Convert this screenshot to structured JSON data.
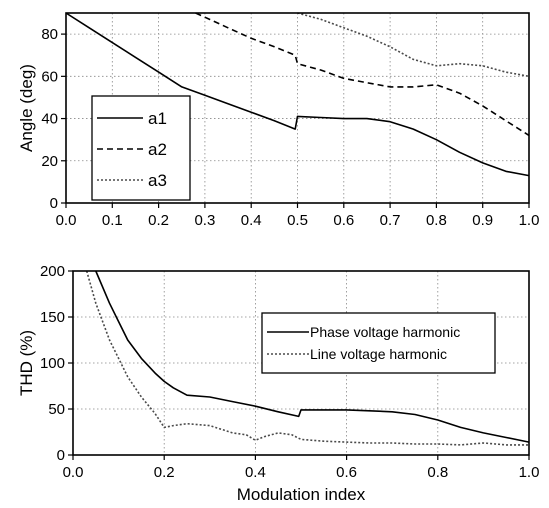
{
  "chart_data": [
    {
      "type": "line",
      "xlabel": "",
      "ylabel": "Angle (deg)",
      "xlim": [
        0.0,
        1.0
      ],
      "ylim": [
        0,
        90
      ],
      "xticks": [
        "0.0",
        "0.1",
        "0.2",
        "0.3",
        "0.4",
        "0.5",
        "0.6",
        "0.7",
        "0.8",
        "0.9",
        "1.0"
      ],
      "yticks": [
        "0",
        "20",
        "40",
        "60",
        "80"
      ],
      "grid": true,
      "legend_position": "middle-left",
      "series": [
        {
          "name": "a1",
          "style": "solid",
          "x": [
            0.0,
            0.05,
            0.1,
            0.15,
            0.2,
            0.25,
            0.3,
            0.35,
            0.4,
            0.45,
            0.495,
            0.5,
            0.55,
            0.6,
            0.65,
            0.7,
            0.75,
            0.8,
            0.85,
            0.9,
            0.95,
            1.0
          ],
          "y": [
            90,
            83,
            76,
            69,
            62,
            55,
            51,
            47,
            43,
            39,
            35,
            41,
            40.5,
            40,
            40,
            38.5,
            35,
            30,
            24,
            19,
            15,
            13
          ]
        },
        {
          "name": "a2",
          "style": "dashed",
          "x": [
            0.28,
            0.3,
            0.35,
            0.4,
            0.45,
            0.495,
            0.5,
            0.55,
            0.6,
            0.65,
            0.7,
            0.75,
            0.8,
            0.85,
            0.9,
            0.95,
            1.0
          ],
          "y": [
            90,
            88,
            83,
            78,
            74,
            70,
            66,
            63,
            59,
            57,
            55,
            55,
            56,
            52,
            46,
            39,
            32
          ]
        },
        {
          "name": "a3",
          "style": "dotted",
          "x": [
            0.5,
            0.55,
            0.6,
            0.65,
            0.7,
            0.75,
            0.8,
            0.85,
            0.9,
            0.95,
            1.0
          ],
          "y": [
            90,
            87,
            83,
            79,
            74,
            68,
            65,
            66,
            65,
            62,
            60
          ]
        }
      ]
    },
    {
      "type": "line",
      "xlabel": "Modulation index",
      "ylabel": "THD (%)",
      "xlim": [
        0.0,
        1.0
      ],
      "ylim": [
        0,
        200
      ],
      "xticks": [
        "0.0",
        "0.2",
        "0.4",
        "0.6",
        "0.8",
        "1.0"
      ],
      "yticks": [
        "0",
        "50",
        "100",
        "150",
        "200"
      ],
      "grid": true,
      "legend_position": "middle-right",
      "series": [
        {
          "name": "Phase voltage harmonic",
          "style": "solid",
          "x": [
            0.05,
            0.08,
            0.1,
            0.12,
            0.15,
            0.18,
            0.2,
            0.22,
            0.25,
            0.3,
            0.35,
            0.4,
            0.45,
            0.495,
            0.5,
            0.55,
            0.6,
            0.65,
            0.7,
            0.75,
            0.8,
            0.85,
            0.9,
            0.95,
            1.0
          ],
          "y": [
            200,
            165,
            145,
            125,
            105,
            89,
            80,
            73,
            65,
            63,
            58,
            53,
            47,
            42,
            49,
            49,
            49,
            48,
            47,
            44,
            38,
            30,
            24,
            19,
            14
          ]
        },
        {
          "name": "Line voltage harmonic",
          "style": "dotted",
          "x": [
            0.03,
            0.05,
            0.08,
            0.1,
            0.12,
            0.15,
            0.18,
            0.2,
            0.22,
            0.25,
            0.3,
            0.35,
            0.38,
            0.4,
            0.42,
            0.45,
            0.48,
            0.5,
            0.55,
            0.6,
            0.65,
            0.7,
            0.75,
            0.8,
            0.85,
            0.9,
            0.95,
            1.0
          ],
          "y": [
            200,
            165,
            125,
            105,
            85,
            63,
            45,
            30,
            32,
            34,
            32,
            24,
            22,
            16,
            20,
            24,
            22,
            17,
            15,
            14,
            13,
            13,
            12,
            12,
            11,
            13,
            11,
            11
          ]
        }
      ]
    }
  ]
}
